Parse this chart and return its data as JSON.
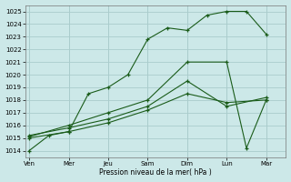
{
  "xlabel": "Pression niveau de la mer( hPa )",
  "background_color": "#cce8e8",
  "grid_color": "#aacccc",
  "line_color": "#1a5c1a",
  "ylim": [
    1013.5,
    1025.5
  ],
  "yticks": [
    1014,
    1015,
    1016,
    1017,
    1018,
    1019,
    1020,
    1021,
    1022,
    1023,
    1024,
    1025
  ],
  "x_labels": [
    "Ven",
    "Mer",
    "Jeu",
    "Sam",
    "Dim",
    "Lun",
    "Mar"
  ],
  "x_tick_pos": [
    0,
    2,
    4,
    6,
    8,
    10,
    12
  ],
  "xlim": [
    -0.2,
    13.0
  ],
  "series": [
    {
      "x": [
        0,
        1,
        2,
        3,
        4,
        5,
        6,
        7,
        8,
        9,
        10,
        11,
        12
      ],
      "y": [
        1014.0,
        1015.2,
        1015.5,
        1018.5,
        1019.0,
        1020.0,
        1022.8,
        1023.7,
        1023.5,
        1024.7,
        1025.0,
        1025.0,
        1023.2
      ]
    },
    {
      "x": [
        0,
        2,
        4,
        6,
        8,
        10,
        12
      ],
      "y": [
        1015.0,
        1015.5,
        1016.2,
        1017.2,
        1018.5,
        1017.8,
        1018.0
      ]
    },
    {
      "x": [
        0,
        2,
        4,
        6,
        8,
        10,
        12
      ],
      "y": [
        1015.2,
        1015.8,
        1016.5,
        1017.5,
        1019.5,
        1017.5,
        1018.2
      ]
    },
    {
      "x": [
        0,
        2,
        4,
        6,
        8,
        10,
        11,
        12
      ],
      "y": [
        1015.1,
        1016.0,
        1017.0,
        1018.0,
        1021.0,
        1021.0,
        1014.2,
        1018.0
      ]
    }
  ]
}
